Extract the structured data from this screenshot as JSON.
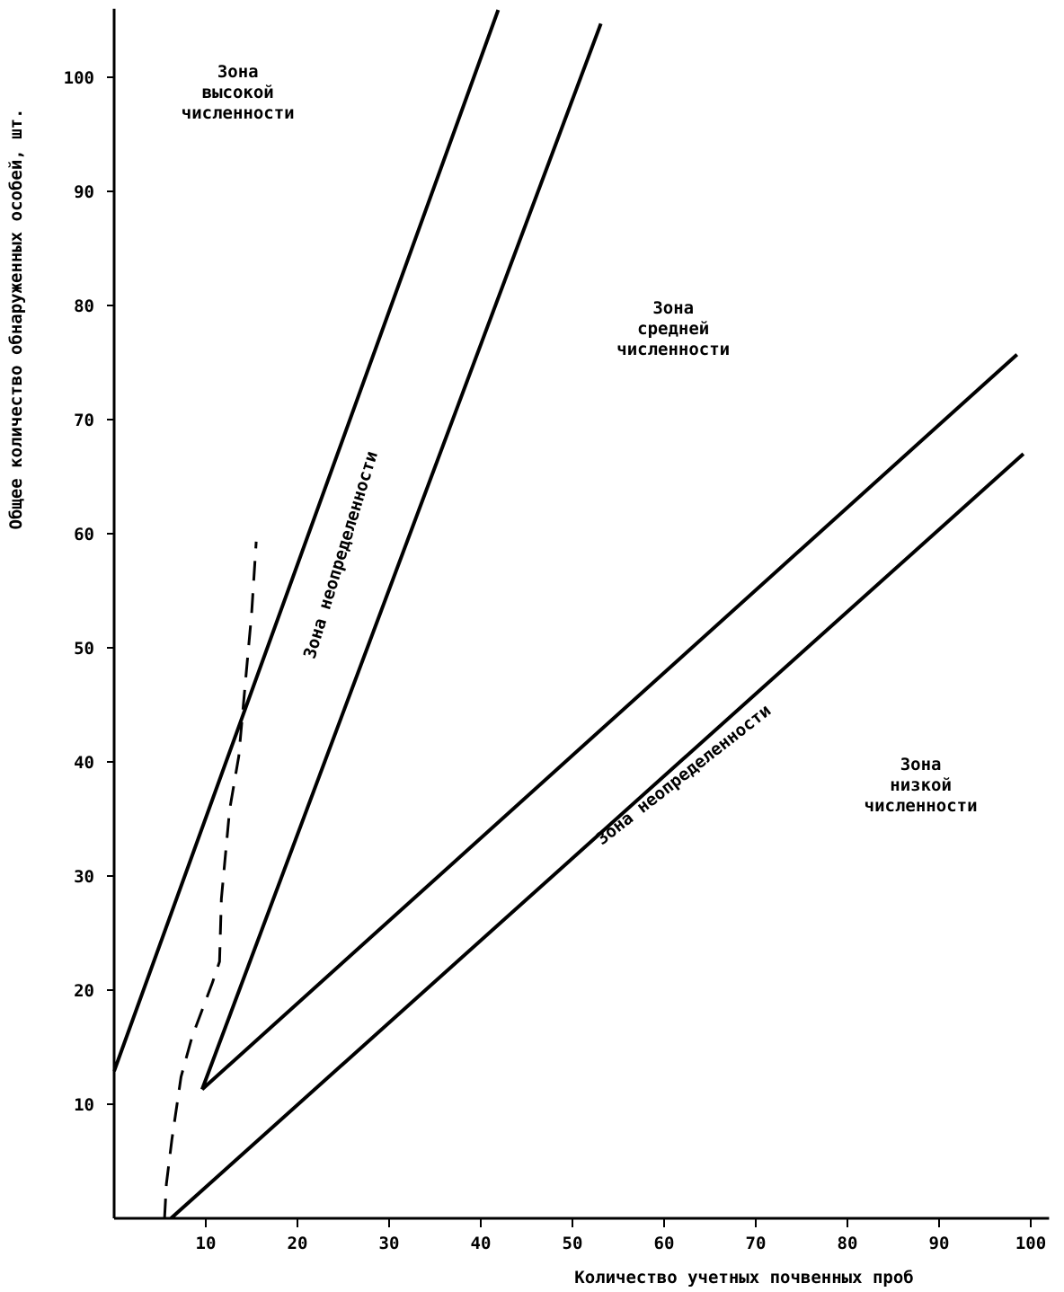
{
  "chart_data": {
    "type": "line",
    "title": "",
    "xlabel": "Количество учетных почвенных проб",
    "ylabel": "Общее количество обнаруженных особей, шт.",
    "xlim": [
      0,
      102
    ],
    "ylim": [
      0,
      106
    ],
    "xticks": [
      10,
      20,
      30,
      40,
      50,
      60,
      70,
      80,
      90,
      100
    ],
    "yticks": [
      10,
      20,
      30,
      40,
      50,
      60,
      70,
      80,
      90,
      100
    ],
    "grid": false,
    "series": [
      {
        "name": "upper-boundary-high",
        "style": "solid",
        "x": [
          0,
          41.9
        ],
        "y": [
          12.9,
          105.9
        ]
      },
      {
        "name": "lower-boundary-high",
        "style": "solid",
        "x": [
          9.6,
          53.1
        ],
        "y": [
          11.3,
          104.7
        ]
      },
      {
        "name": "upper-boundary-low",
        "style": "solid",
        "x": [
          9.6,
          98.5
        ],
        "y": [
          11.3,
          75.7
        ]
      },
      {
        "name": "lower-boundary-low",
        "style": "solid",
        "x": [
          6.2,
          99.2
        ],
        "y": [
          0,
          67
        ]
      },
      {
        "name": "dashed-curve",
        "style": "dashed",
        "x": [
          5.5,
          5.7,
          6.3,
          7.3,
          8.5,
          10.7,
          11.5,
          11.7,
          12.6,
          13.6,
          14.3,
          15.0,
          15.5
        ],
        "y": [
          0,
          3,
          6.9,
          12.4,
          15.9,
          20.6,
          22.5,
          28,
          35.8,
          40.5,
          46.8,
          53,
          59.3
        ]
      }
    ],
    "annotations": [
      {
        "lines": [
          "Зона",
          "высокой",
          "численности"
        ],
        "x": 13.5,
        "y": 100,
        "angle": 0
      },
      {
        "lines": [
          "Зона",
          "средней",
          "численности"
        ],
        "x": 61,
        "y": 79.3,
        "angle": 0
      },
      {
        "lines": [
          "Зона",
          "низкой",
          "численности"
        ],
        "x": 88,
        "y": 39.3,
        "angle": 0
      },
      {
        "lines": [
          "Зона неопределенности"
        ],
        "x": 25.3,
        "y": 58,
        "angle": -73
      },
      {
        "lines": [
          "Зона неопределенности"
        ],
        "x": 62.5,
        "y": 38.5,
        "angle": -38
      }
    ]
  }
}
